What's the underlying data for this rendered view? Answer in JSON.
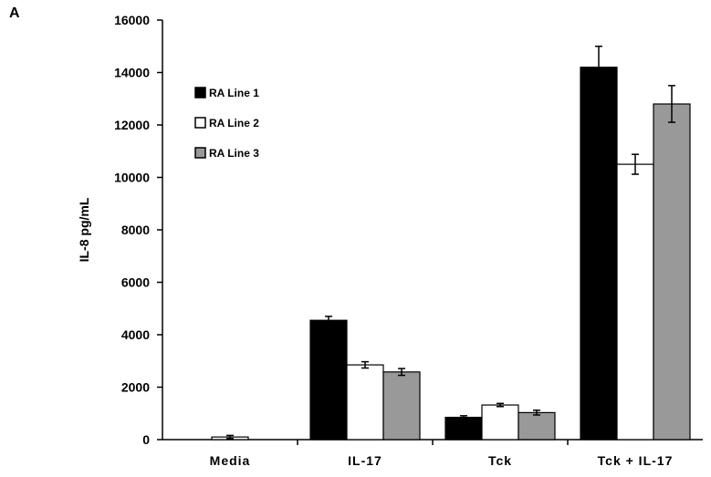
{
  "panel_label": "A",
  "chart_data": {
    "type": "bar",
    "categories": [
      "Media",
      "IL-17",
      "Tck",
      "Tck + IL-17"
    ],
    "ylabel": "IL-8 pg/mL",
    "xlabel": "",
    "ylim": [
      0,
      16000
    ],
    "yticks": [
      0,
      2000,
      4000,
      6000,
      8000,
      10000,
      12000,
      14000,
      16000
    ],
    "legend_position": "top-left",
    "grid": false,
    "series": [
      {
        "name": "RA Line 1",
        "color": "#000000",
        "values": [
          0,
          4550,
          850,
          14200
        ],
        "errors": [
          0,
          150,
          60,
          800
        ]
      },
      {
        "name": "RA Line 2",
        "color": "#ffffff",
        "values": [
          100,
          2850,
          1320,
          10500
        ],
        "errors": [
          60,
          120,
          60,
          380
        ]
      },
      {
        "name": "RA Line 3",
        "color": "#999999",
        "values": [
          0,
          2580,
          1030,
          12800
        ],
        "errors": [
          0,
          130,
          90,
          700
        ]
      }
    ]
  }
}
